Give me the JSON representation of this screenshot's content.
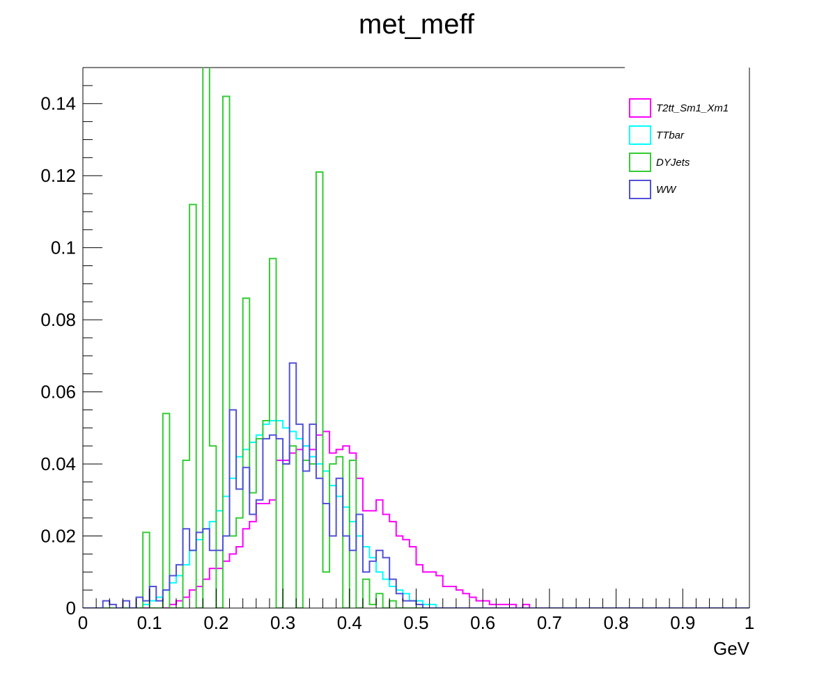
{
  "chart_data": {
    "type": "histogram",
    "title": "met_meff",
    "xlabel": "GeV",
    "ylabel": "",
    "xlim": [
      0,
      1
    ],
    "ylim": [
      0,
      0.15
    ],
    "xticks": [
      "0",
      "0.1",
      "0.2",
      "0.3",
      "0.4",
      "0.5",
      "0.6",
      "0.7",
      "0.8",
      "0.9",
      "1"
    ],
    "xtick_values": [
      0,
      0.1,
      0.2,
      0.3,
      0.4,
      0.5,
      0.6,
      0.7,
      0.8,
      0.9,
      1
    ],
    "yticks": [
      "0",
      "0.02",
      "0.04",
      "0.06",
      "0.08",
      "0.1",
      "0.12",
      "0.14"
    ],
    "ytick_values": [
      0,
      0.02,
      0.04,
      0.06,
      0.08,
      0.1,
      0.12,
      0.14
    ],
    "bin_start": 0,
    "bin_width": 0.01,
    "n_bins": 100,
    "legend_position": "top-right",
    "series": [
      {
        "name": "T2tt_Sm1_Xm1",
        "color": "#ff00ff",
        "values": [
          0,
          0,
          0,
          0,
          0,
          0,
          0,
          0,
          0,
          0,
          0,
          0,
          0,
          0.001,
          0.002,
          0.003,
          0.005,
          0.006,
          0.008,
          0.011,
          0.011,
          0.013,
          0.015,
          0.017,
          0.022,
          0.024,
          0.029,
          0.029,
          0.03,
          0.041,
          0.041,
          0.043,
          0.044,
          0.045,
          0.044,
          0.048,
          0.049,
          0.043,
          0.044,
          0.045,
          0.043,
          0.036,
          0.027,
          0.027,
          0.03,
          0.026,
          0.024,
          0.02,
          0.019,
          0.017,
          0.012,
          0.01,
          0.01,
          0.009,
          0.006,
          0.006,
          0.005,
          0.004,
          0.003,
          0.002,
          0.002,
          0.001,
          0.001,
          0.001,
          0.001,
          0,
          0.001,
          0,
          0,
          0,
          0,
          0,
          0,
          0,
          0,
          0,
          0,
          0,
          0,
          0,
          0,
          0,
          0,
          0,
          0,
          0,
          0,
          0,
          0,
          0,
          0,
          0,
          0,
          0,
          0,
          0,
          0,
          0,
          0,
          0
        ]
      },
      {
        "name": "TTbar",
        "color": "#00ffff",
        "values": [
          0,
          0,
          0,
          0,
          0,
          0,
          0,
          0,
          0,
          0.001,
          0.002,
          0.003,
          0.005,
          0.007,
          0.009,
          0.012,
          0.016,
          0.019,
          0.022,
          0.024,
          0.027,
          0.031,
          0.036,
          0.042,
          0.044,
          0.046,
          0.048,
          0.051,
          0.052,
          0.052,
          0.05,
          0.049,
          0.047,
          0.045,
          0.042,
          0.04,
          0.038,
          0.034,
          0.031,
          0.028,
          0.024,
          0.02,
          0.017,
          0.014,
          0.01,
          0.008,
          0.006,
          0.005,
          0.004,
          0.002,
          0.002,
          0.001,
          0.001,
          0,
          0,
          0,
          0,
          0,
          0,
          0,
          0,
          0,
          0,
          0,
          0,
          0,
          0,
          0,
          0,
          0,
          0,
          0,
          0,
          0,
          0,
          0,
          0,
          0,
          0,
          0,
          0,
          0,
          0,
          0,
          0,
          0,
          0,
          0,
          0,
          0,
          0,
          0,
          0,
          0,
          0,
          0,
          0,
          0,
          0,
          0
        ]
      },
      {
        "name": "DYJets",
        "color": "#33cc33",
        "values": [
          0,
          0,
          0,
          0,
          0,
          0,
          0,
          0,
          0,
          0.021,
          0,
          0,
          0.054,
          0,
          0,
          0.041,
          0.112,
          0,
          0.152,
          0.045,
          0,
          0.142,
          0.02,
          0.025,
          0.086,
          0.032,
          0.047,
          0.052,
          0.097,
          0,
          0.04,
          0.045,
          0,
          0.041,
          0.04,
          0.121,
          0.01,
          0.04,
          0.042,
          0,
          0.041,
          0,
          0.008,
          0.001,
          0.004,
          0,
          0.002,
          0,
          0,
          0,
          0,
          0,
          0,
          0,
          0,
          0,
          0,
          0,
          0,
          0,
          0,
          0,
          0,
          0,
          0,
          0,
          0,
          0,
          0,
          0,
          0,
          0,
          0,
          0,
          0,
          0,
          0,
          0,
          0,
          0,
          0,
          0,
          0,
          0,
          0,
          0,
          0,
          0,
          0,
          0,
          0,
          0,
          0,
          0,
          0,
          0,
          0,
          0,
          0,
          0
        ]
      },
      {
        "name": "WW",
        "color": "#5050d8",
        "values": [
          0,
          0,
          0,
          0.002,
          0.001,
          0,
          0.002,
          0,
          0.003,
          0.002,
          0.006,
          0.002,
          0.005,
          0.009,
          0.012,
          0.022,
          0.016,
          0.021,
          0.022,
          0.016,
          0.016,
          0.02,
          0.055,
          0.033,
          0.039,
          0.026,
          0.03,
          0.047,
          0.048,
          0.047,
          0.04,
          0.068,
          0.051,
          0.038,
          0.051,
          0.036,
          0.029,
          0.02,
          0.036,
          0.02,
          0.016,
          0.026,
          0.01,
          0.013,
          0.016,
          0.014,
          0.008,
          0.004,
          0.002,
          0.002,
          0.001,
          0,
          0,
          0,
          0,
          0,
          0,
          0,
          0,
          0,
          0,
          0,
          0,
          0,
          0,
          0,
          0,
          0,
          0,
          0,
          0,
          0,
          0,
          0,
          0,
          0,
          0,
          0,
          0,
          0,
          0,
          0,
          0,
          0,
          0,
          0,
          0,
          0,
          0,
          0,
          0,
          0,
          0,
          0,
          0,
          0,
          0,
          0,
          0,
          0
        ]
      }
    ]
  }
}
